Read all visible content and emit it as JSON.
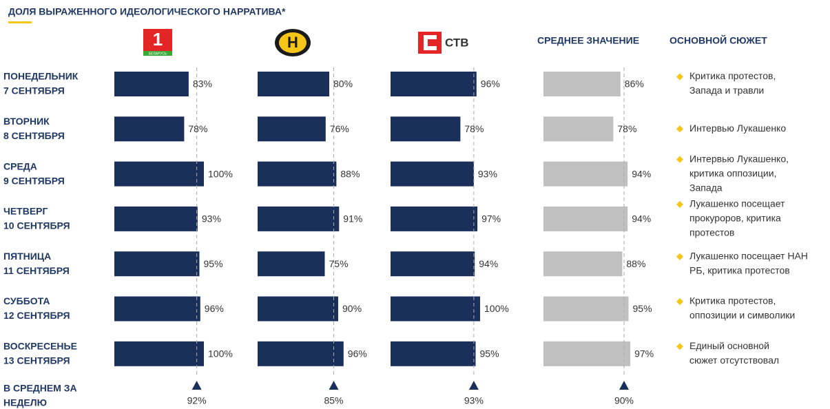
{
  "title": "ДОЛЯ ВЫРАЖЕННОГО ИДЕОЛОГИЧЕСКОГО НАРРАТИВА*",
  "row_labels": [
    [
      "ПОНЕДЕЛЬНИК",
      "7 СЕНТЯБРЯ"
    ],
    [
      "ВТОРНИК",
      "8 СЕНТЯБРЯ"
    ],
    [
      "СРЕДА",
      "9 СЕНТЯБРЯ"
    ],
    [
      "ЧЕТВЕРГ",
      "10 СЕНТЯБРЯ"
    ],
    [
      "ПЯТНИЦА",
      "11 СЕНТЯБРЯ"
    ],
    [
      "СУББОТА",
      "12 СЕНТЯБРЯ"
    ],
    [
      "ВОСКРЕСЕНЬЕ",
      "13 СЕНТЯБРЯ"
    ]
  ],
  "average_row_label": [
    "В СРЕДНЕМ ЗА",
    "НЕДЕЛЮ"
  ],
  "chart_data": [
    {
      "type": "bar",
      "logo": [
        "1",
        "БЕЛАРУСЬ"
      ],
      "color": "#1b2f5b",
      "xlim": [
        0,
        100
      ],
      "values": [
        83,
        78,
        100,
        93,
        95,
        96,
        100
      ],
      "value_labels": [
        "83%",
        "78%",
        "100%",
        "93%",
        "95%",
        "96%",
        "100%"
      ],
      "average": 92,
      "average_label": "92%"
    },
    {
      "type": "bar",
      "logo": [
        "Н"
      ],
      "color": "#1b2f5b",
      "xlim": [
        0,
        100
      ],
      "values": [
        80,
        76,
        88,
        91,
        75,
        90,
        96
      ],
      "value_labels": [
        "80%",
        "76%",
        "88%",
        "91%",
        "75%",
        "90%",
        "96%"
      ],
      "average": 85,
      "average_label": "85%"
    },
    {
      "type": "bar",
      "logo": [
        "СТВ"
      ],
      "color": "#1b2f5b",
      "xlim": [
        0,
        100
      ],
      "values": [
        96,
        78,
        93,
        97,
        94,
        100,
        95
      ],
      "value_labels": [
        "96%",
        "78%",
        "93%",
        "97%",
        "94%",
        "100%",
        "95%"
      ],
      "average": 93,
      "average_label": "93%"
    },
    {
      "type": "bar",
      "title": "СРЕДНЕЕ ЗНАЧЕНИЕ",
      "color": "#c0c0c0",
      "xlim": [
        0,
        100
      ],
      "values": [
        86,
        78,
        94,
        94,
        88,
        95,
        97
      ],
      "value_labels": [
        "86%",
        "78%",
        "94%",
        "94%",
        "88%",
        "95%",
        "97%"
      ],
      "average": 90,
      "average_label": "90%"
    }
  ],
  "story_header": "ОСНОВНОЙ СЮЖЕТ",
  "stories": [
    [
      "Критика протестов,",
      "Запада и травли"
    ],
    [
      "Интервью Лукашенко"
    ],
    [
      "Интервью Лукашенко,",
      "критика оппозиции,",
      "Запада"
    ],
    [
      "Лукашенко посещает",
      "прокуроров, критика",
      "протестов"
    ],
    [
      "Лукашенко посещает НАН",
      "РБ, критика протестов"
    ],
    [
      "Критика протестов,",
      "оппозиции и символики"
    ],
    [
      "Единый основной",
      "сюжет отсутствовал"
    ]
  ]
}
